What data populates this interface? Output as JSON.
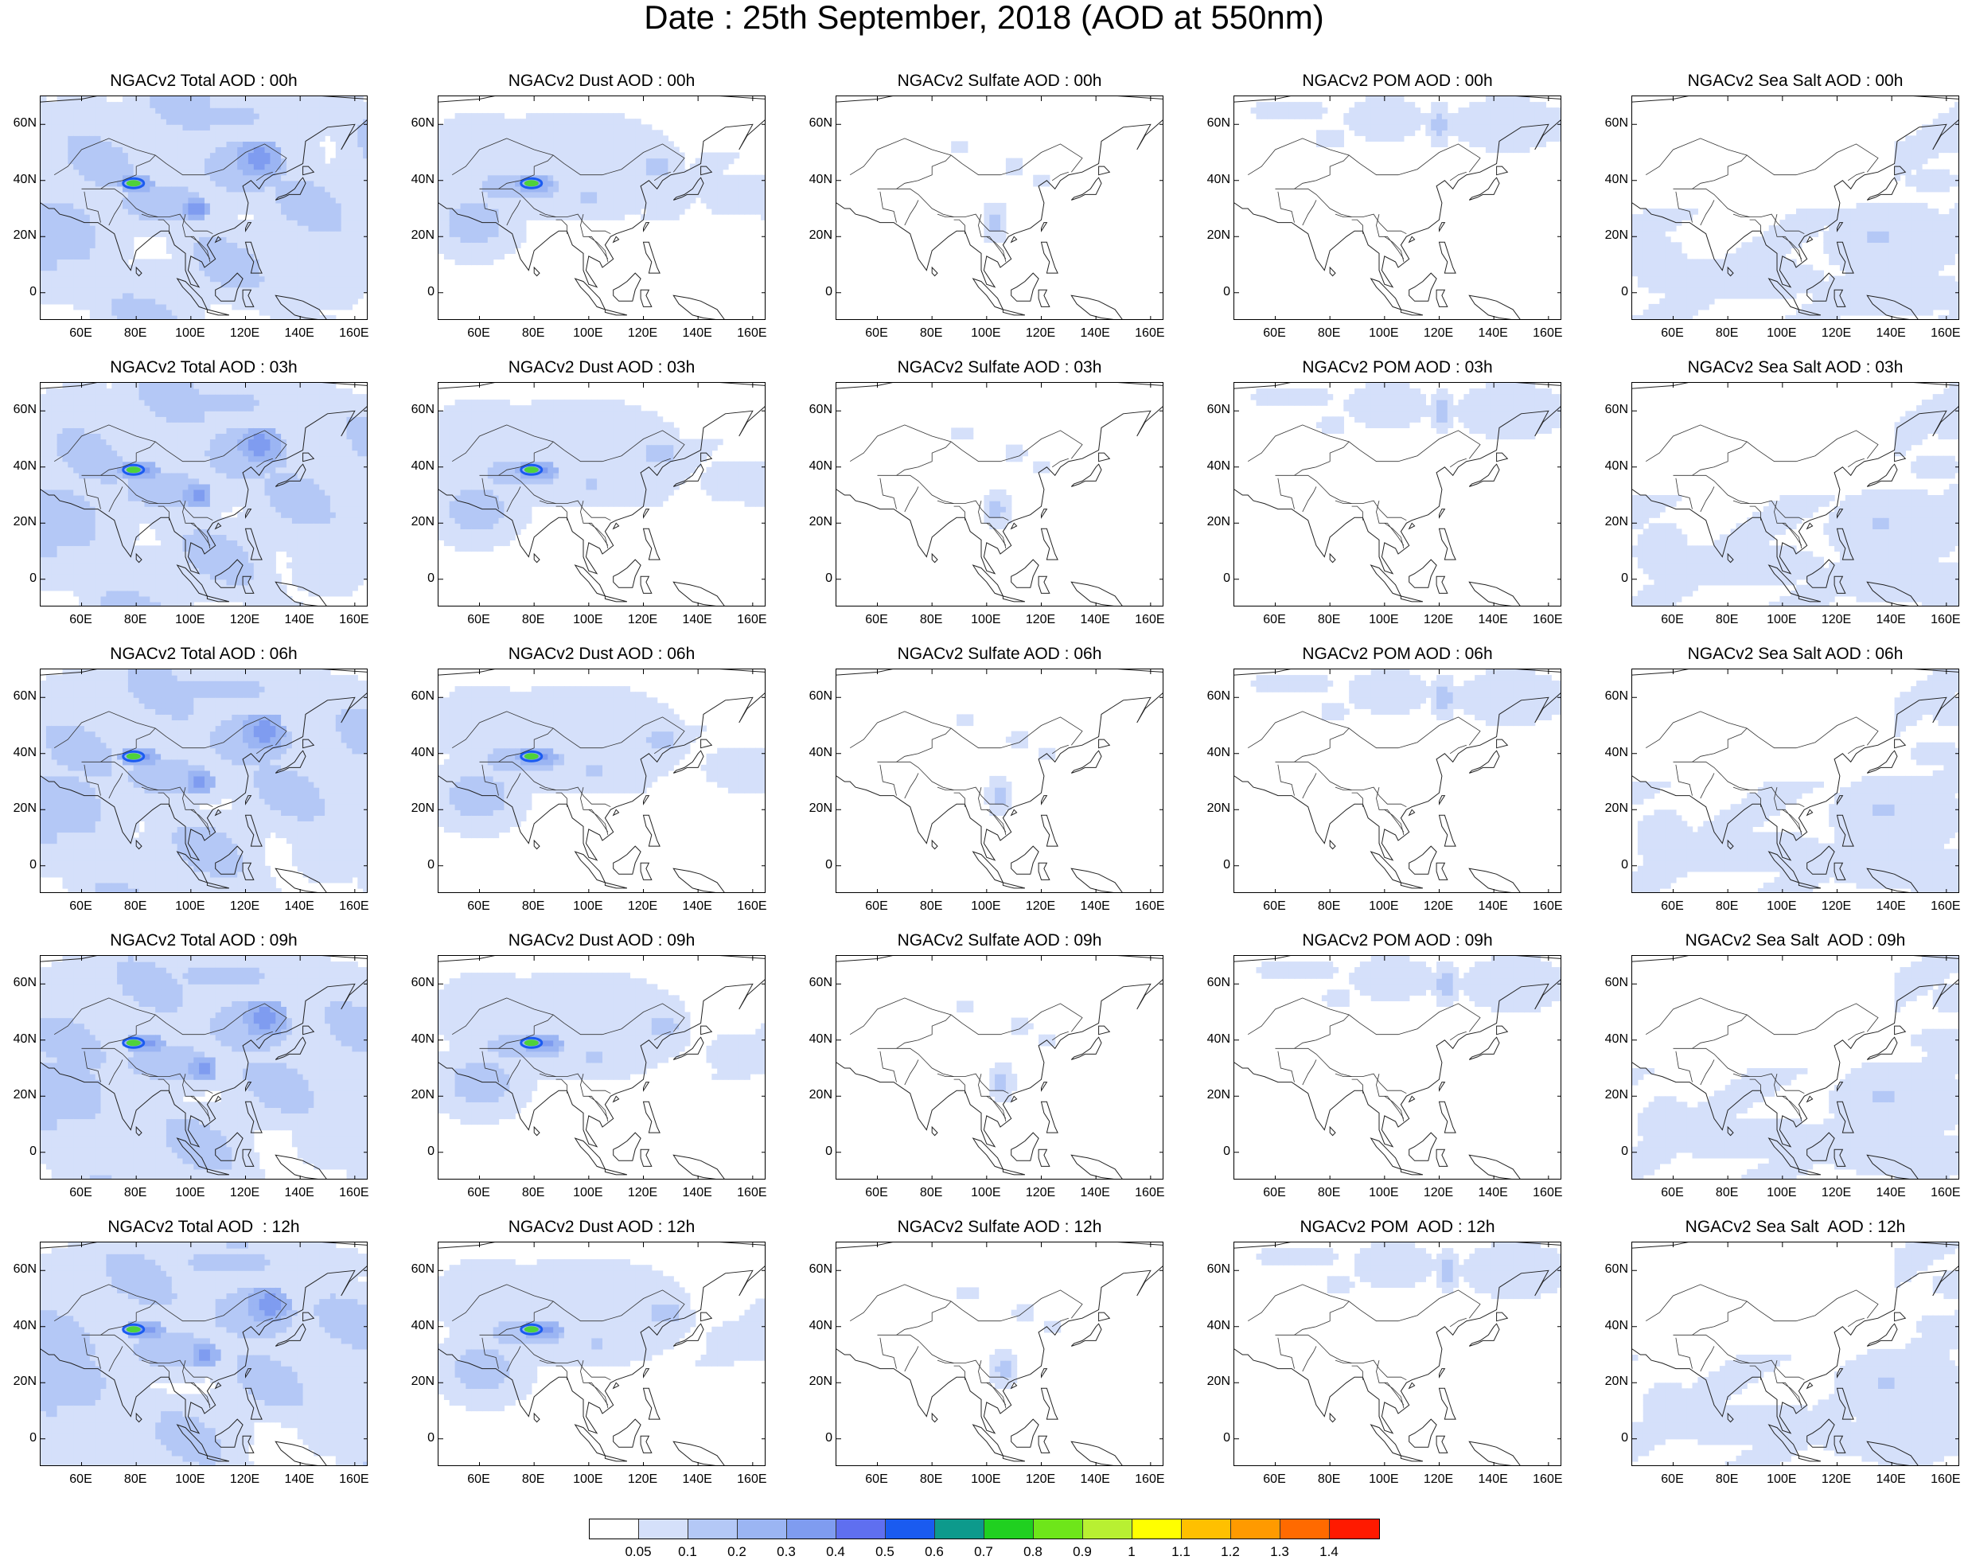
{
  "title": "Date : 25th September, 2018 (AOD at 550nm)",
  "lat_labels": [
    "60N",
    "40N",
    "20N",
    "0"
  ],
  "lon_labels": [
    "60E",
    "80E",
    "100E",
    "120E",
    "140E",
    "160E"
  ],
  "panels": [
    [
      "NGACv2 Total AOD : 00h",
      "NGACv2 Dust AOD : 00h",
      "NGACv2 Sulfate AOD : 00h",
      "NGACv2 POM AOD : 00h",
      "NGACv2 Sea Salt AOD : 00h"
    ],
    [
      "NGACv2 Total AOD : 03h",
      "NGACv2 Dust AOD : 03h",
      "NGACv2 Sulfate AOD : 03h",
      "NGACv2 POM AOD : 03h",
      "NGACv2 Sea Salt AOD : 03h"
    ],
    [
      "NGACv2 Total AOD : 06h",
      "NGACv2 Dust AOD : 06h",
      "NGACv2 Sulfate AOD : 06h",
      "NGACv2 POM AOD : 06h",
      "NGACv2 Sea Salt AOD : 06h"
    ],
    [
      "NGACv2 Total AOD : 09h",
      "NGACv2 Dust AOD : 09h",
      "NGACv2 Sulfate AOD : 09h",
      "NGACv2 POM AOD : 09h",
      "NGACv2 Sea Salt  AOD : 09h"
    ],
    [
      "NGACv2 Total AOD  : 12h",
      "NGACv2 Dust AOD : 12h",
      "NGACv2 Sulfate AOD : 12h",
      "NGACv2 POM  AOD : 12h",
      "NGACv2 Sea Salt  AOD : 12h"
    ]
  ],
  "colorbar": {
    "labels": [
      "0.05",
      "0.1",
      "0.2",
      "0.3",
      "0.4",
      "0.5",
      "0.6",
      "0.7",
      "0.8",
      "0.9",
      "1",
      "1.1",
      "1.2",
      "1.3",
      "1.4"
    ],
    "colors": [
      "#ffffff",
      "#d5e0fa",
      "#b4c8f6",
      "#9bb5f3",
      "#7f9cf0",
      "#5f6ff0",
      "#1a5bf0",
      "#0d9a8c",
      "#20d020",
      "#6ee61a",
      "#b8f032",
      "#ffff00",
      "#ffc000",
      "#ff9a00",
      "#ff6a00",
      "#ff1a00"
    ]
  }
}
